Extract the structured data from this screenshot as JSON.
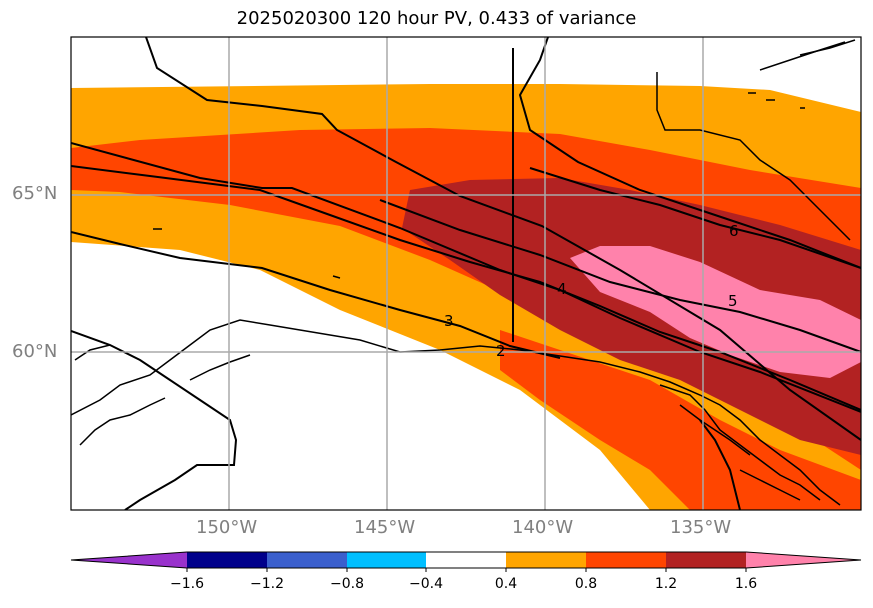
{
  "title": "2025020300 120 hour PV, 0.433 of variance",
  "lat_labels": [
    "65°N",
    "60°N"
  ],
  "lon_labels": [
    "150°W",
    "145°W",
    "140°W",
    "135°W"
  ],
  "contour_labels": [
    "2",
    "3",
    "4",
    "5",
    "6"
  ],
  "colorbar": {
    "ticks": [
      "−1.6",
      "−1.2",
      "−0.8",
      "−0.4",
      "0.4",
      "0.8",
      "1.2",
      "1.6"
    ],
    "colors": [
      "#9932CC",
      "#00008B",
      "#3A5FCD",
      "#00BFFF",
      "#FFFFFF",
      "#FFA500",
      "#FF4500",
      "#B22222",
      "#FF82AB"
    ]
  },
  "fill_colors": {
    "level_0_4": "#FFA500",
    "level_0_8": "#FF4500",
    "level_1_2": "#B22222",
    "level_1_6": "#FF82AB"
  }
}
